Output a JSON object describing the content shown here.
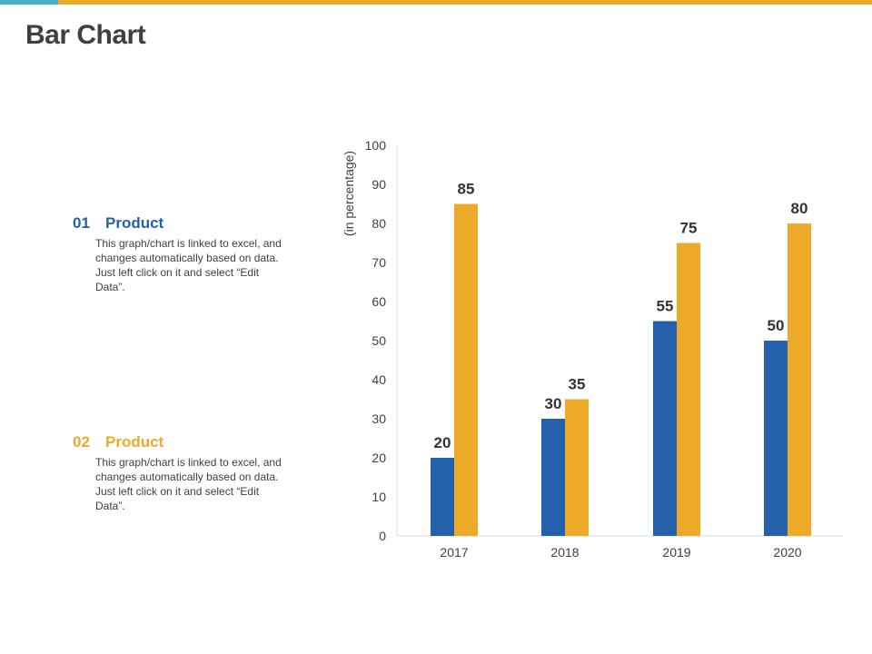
{
  "colors": {
    "accent_teal": "#4bacc6",
    "accent_gold": "#edaa28",
    "series1": "#2560ad",
    "series2": "#edaa28"
  },
  "page": {
    "title": "Bar Chart"
  },
  "legend": [
    {
      "number": "01",
      "label": "Product",
      "description": "This graph/chart is linked to excel, and changes automatically based on data. Just left click on it and select “Edit Data”."
    },
    {
      "number": "02",
      "label": "Product",
      "description": "This graph/chart is linked to excel, and changes automatically based on data. Just left click on it and select “Edit Data”."
    }
  ],
  "chart_data": {
    "type": "bar",
    "title": "",
    "xlabel": "",
    "ylabel": "(in percentage)",
    "categories": [
      "2017",
      "2018",
      "2019",
      "2020"
    ],
    "series": [
      {
        "name": "Product 01",
        "values": [
          20,
          30,
          55,
          50
        ]
      },
      {
        "name": "Product 02",
        "values": [
          85,
          35,
          75,
          80
        ]
      }
    ],
    "ylim": [
      0,
      100
    ],
    "yticks": [
      0,
      10,
      20,
      30,
      40,
      50,
      60,
      70,
      80,
      90,
      100
    ],
    "grid": false,
    "legend": "left"
  }
}
